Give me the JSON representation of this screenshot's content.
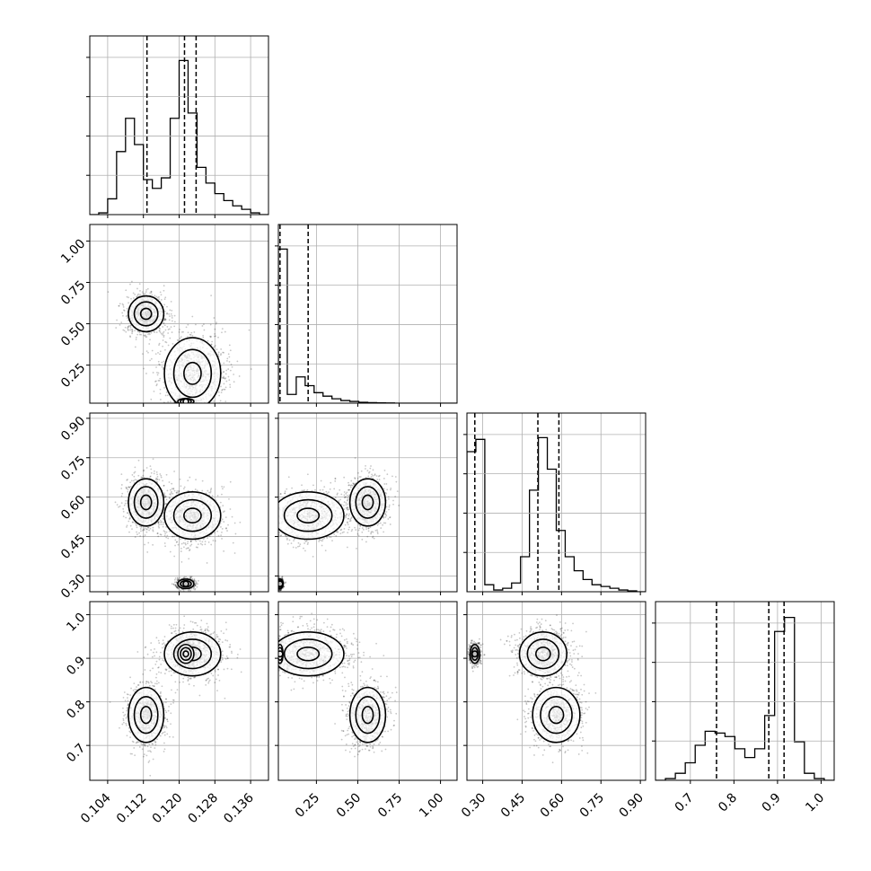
{
  "chart_data": {
    "type": "scatter",
    "title": "",
    "grid": true,
    "layout": "corner-plot 4x4 lower-triangle",
    "parameters": [
      "",
      "",
      "",
      ""
    ],
    "variables": [
      {
        "range": [
          0.1,
          0.14
        ],
        "ticks": [
          "0.104",
          "0.112",
          "0.120",
          "0.128",
          "0.136"
        ],
        "tick_values": [
          0.104,
          0.112,
          0.12,
          0.128,
          0.136
        ],
        "quantiles": [
          0.1128,
          0.1212,
          0.1238
        ],
        "histogram": [
          0,
          0.01,
          0.09,
          0.36,
          0.55,
          0.4,
          0.2,
          0.15,
          0.21,
          0.55,
          0.88,
          0.58,
          0.27,
          0.18,
          0.12,
          0.08,
          0.05,
          0.03,
          0.01,
          0
        ]
      },
      {
        "range": [
          0.02,
          1.1
        ],
        "ticks": [
          "0.25",
          "0.50",
          "0.75",
          "1.00"
        ],
        "tick_values": [
          0.25,
          0.5,
          0.75,
          1.0
        ],
        "quantiles": [
          0.03,
          0.2
        ],
        "histogram": [
          0.88,
          0.05,
          0.15,
          0.1,
          0.06,
          0.04,
          0.025,
          0.015,
          0.01,
          0.005,
          0.003,
          0.002,
          0.001,
          0,
          0,
          0,
          0,
          0,
          0,
          0
        ]
      },
      {
        "range": [
          0.24,
          0.92
        ],
        "ticks": [
          "0.30",
          "0.45",
          "0.60",
          "0.75",
          "0.90"
        ],
        "tick_values": [
          0.3,
          0.45,
          0.6,
          0.75,
          0.9
        ],
        "quantiles": [
          0.27,
          0.51,
          0.59
        ],
        "histogram": [
          0.8,
          0.87,
          0.04,
          0.01,
          0.02,
          0.05,
          0.2,
          0.58,
          0.88,
          0.7,
          0.35,
          0.2,
          0.12,
          0.07,
          0.04,
          0.03,
          0.02,
          0.01,
          0.005,
          0
        ]
      },
      {
        "range": [
          0.62,
          1.03
        ],
        "ticks": [
          "0.7",
          "0.8",
          "0.9",
          "1.0"
        ],
        "tick_values": [
          0.7,
          0.8,
          0.9,
          1.0
        ],
        "quantiles": [
          0.76,
          0.88,
          0.915
        ],
        "histogram": [
          0,
          0.01,
          0.04,
          0.1,
          0.2,
          0.28,
          0.27,
          0.25,
          0.18,
          0.13,
          0.18,
          0.37,
          0.85,
          0.93,
          0.22,
          0.04,
          0.01,
          0
        ]
      }
    ],
    "modes": [
      {
        "centers": [
          0.1126,
          0.56,
          0.58,
          0.77
        ],
        "spreads": [
          0.0022,
          0.06,
          0.05,
          0.035
        ],
        "weight": 0.35
      },
      {
        "centers": [
          0.123,
          0.2,
          0.53,
          0.91
        ],
        "spreads": [
          0.0035,
          0.12,
          0.05,
          0.028
        ],
        "weight": 0.4
      },
      {
        "centers": [
          0.1215,
          0.03,
          0.27,
          0.91
        ],
        "spreads": [
          0.001,
          0.01,
          0.01,
          0.012
        ],
        "weight": 0.25
      }
    ],
    "samples_per_panel": 2600
  }
}
